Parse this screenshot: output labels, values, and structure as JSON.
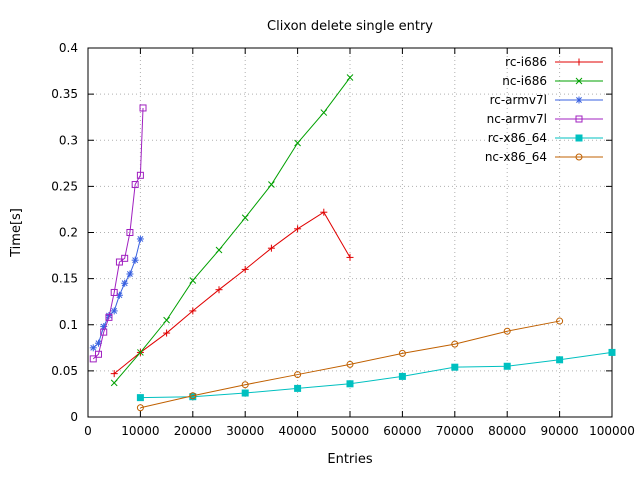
{
  "chart_data": {
    "type": "line",
    "title": "Clixon delete single entry",
    "xlabel": "Entries",
    "ylabel": "Time[s]",
    "xlim": [
      0,
      100000
    ],
    "ylim": [
      0,
      0.4
    ],
    "grid": true,
    "legend_position": "top-right-inside",
    "x_ticks": [
      0,
      10000,
      20000,
      30000,
      40000,
      50000,
      60000,
      70000,
      80000,
      90000,
      100000
    ],
    "x_tick_labels": [
      "0",
      "10000",
      "20000",
      "30000",
      "40000",
      "50000",
      "60000",
      "70000",
      "80000",
      "90000",
      "100000"
    ],
    "y_ticks": [
      0,
      0.05,
      0.1,
      0.15,
      0.2,
      0.25,
      0.3,
      0.35,
      0.4
    ],
    "y_tick_labels": [
      "0",
      "0.05",
      "0.1",
      "0.15",
      "0.2",
      "0.25",
      "0.3",
      "0.35",
      "0.4"
    ],
    "colors": {
      "grid": "#b0b0b0",
      "axis": "#000000",
      "text": "#000000",
      "background": "#ffffff"
    },
    "series": [
      {
        "name": "rc-i686",
        "color": "#e00000",
        "marker": "plus",
        "x": [
          5000,
          10000,
          15000,
          20000,
          25000,
          30000,
          35000,
          40000,
          45000,
          50000
        ],
        "y": [
          0.047,
          0.07,
          0.091,
          0.115,
          0.138,
          0.16,
          0.183,
          0.204,
          0.222,
          0.173
        ]
      },
      {
        "name": "nc-i686",
        "color": "#00a000",
        "marker": "x",
        "x": [
          5000,
          10000,
          15000,
          20000,
          25000,
          30000,
          35000,
          40000,
          45000,
          50000
        ],
        "y": [
          0.037,
          0.07,
          0.105,
          0.148,
          0.181,
          0.216,
          0.252,
          0.297,
          0.33,
          0.368
        ]
      },
      {
        "name": "rc-armv7l",
        "color": "#3860e0",
        "marker": "asterisk",
        "x": [
          1000,
          2000,
          3000,
          4000,
          5000,
          6000,
          7000,
          8000,
          9000,
          10000
        ],
        "y": [
          0.075,
          0.08,
          0.098,
          0.11,
          0.115,
          0.132,
          0.145,
          0.155,
          0.17,
          0.193
        ]
      },
      {
        "name": "nc-armv7l",
        "color": "#a020c0",
        "marker": "square-open",
        "x": [
          1000,
          2000,
          3000,
          4000,
          5000,
          6000,
          7000,
          8000,
          9000,
          10000,
          10500
        ],
        "y": [
          0.063,
          0.068,
          0.092,
          0.108,
          0.135,
          0.168,
          0.172,
          0.2,
          0.252,
          0.262,
          0.335
        ]
      },
      {
        "name": "rc-x86_64",
        "color": "#00c0c0",
        "marker": "square-filled",
        "x": [
          10000,
          20000,
          30000,
          40000,
          50000,
          60000,
          70000,
          80000,
          90000,
          100000
        ],
        "y": [
          0.021,
          0.022,
          0.026,
          0.031,
          0.036,
          0.044,
          0.054,
          0.055,
          0.062,
          0.07
        ]
      },
      {
        "name": "nc-x86_64",
        "color": "#c06000",
        "marker": "circle-open",
        "x": [
          10000,
          20000,
          30000,
          40000,
          50000,
          60000,
          70000,
          80000,
          90000
        ],
        "y": [
          0.01,
          0.023,
          0.035,
          0.046,
          0.057,
          0.069,
          0.079,
          0.093,
          0.104
        ]
      }
    ]
  }
}
